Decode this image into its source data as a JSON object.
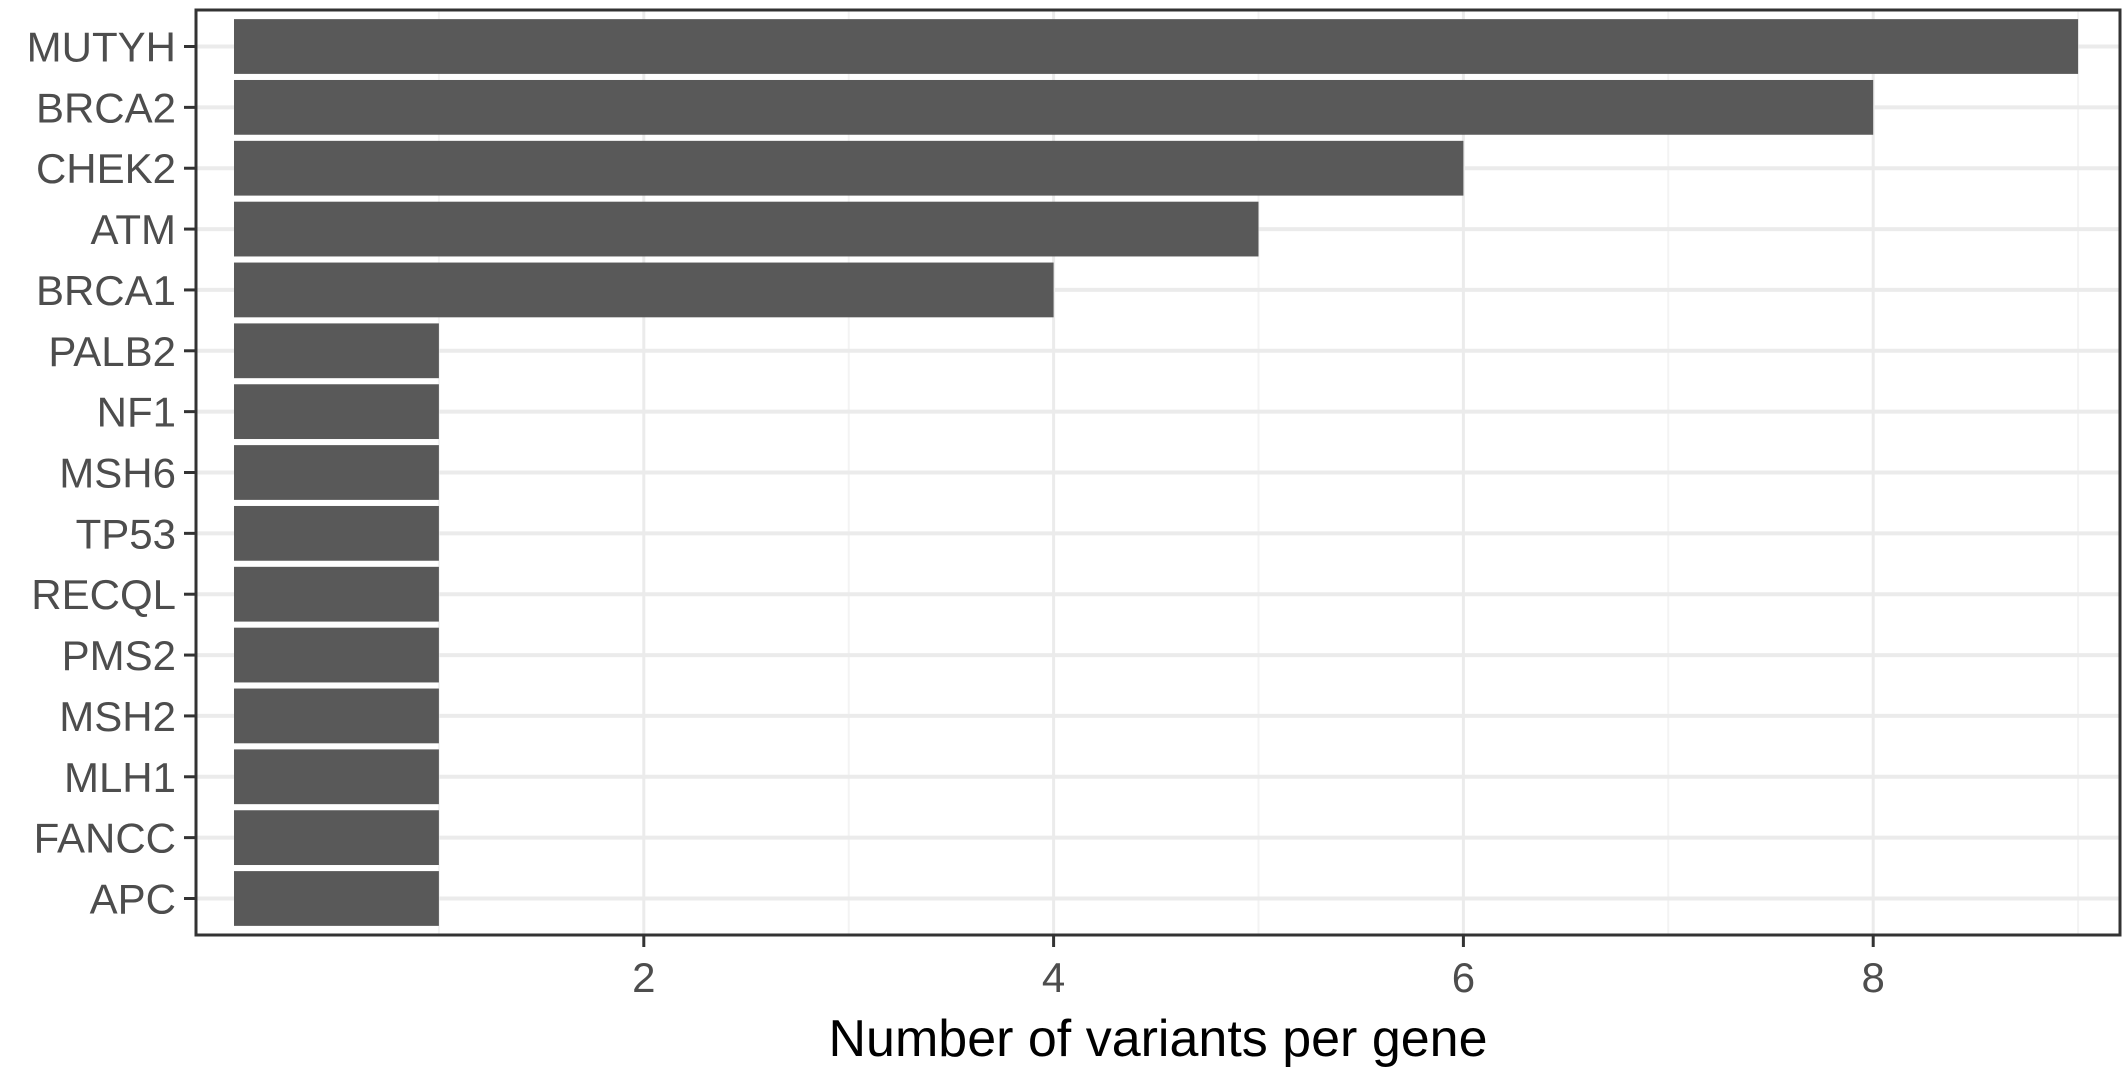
{
  "chart_data": {
    "type": "bar",
    "orientation": "horizontal",
    "categories": [
      "MUTYH",
      "BRCA2",
      "CHEK2",
      "ATM",
      "BRCA1",
      "PALB2",
      "NF1",
      "MSH6",
      "TP53",
      "RECQL",
      "PMS2",
      "MSH2",
      "MLH1",
      "FANCC",
      "APC"
    ],
    "values": [
      9,
      8,
      6,
      5,
      4,
      1,
      1,
      1,
      1,
      1,
      1,
      1,
      1,
      1,
      1
    ],
    "xlabel": "Number of variants per gene",
    "ylabel": "",
    "x_ticks": [
      2,
      4,
      6,
      8
    ],
    "xlim": [
      0,
      9.4
    ],
    "grid": true,
    "legend": "none",
    "colors": {
      "bar": "#595959",
      "panel_border": "#333333",
      "grid_major": "#ebebeb",
      "grid_minor": "#f3f3f3",
      "tick_text": "#4d4d4d",
      "background": "#ffffff"
    }
  }
}
